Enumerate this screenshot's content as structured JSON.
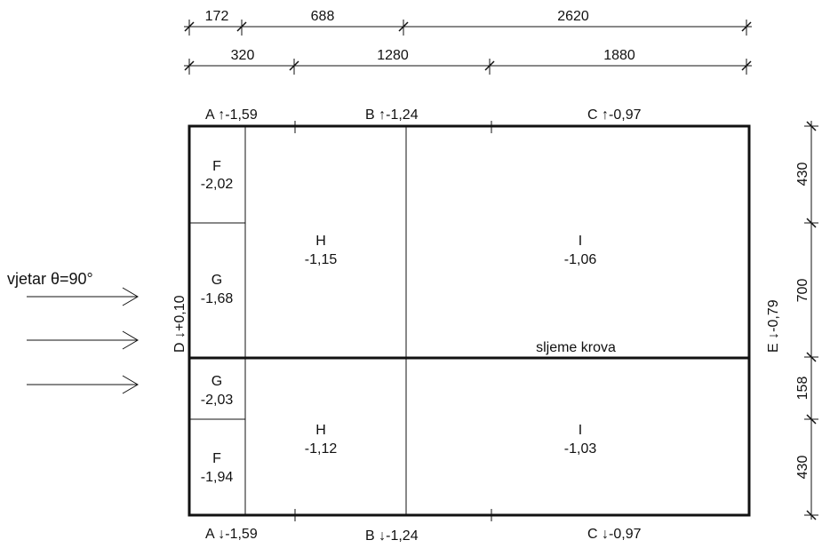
{
  "dims_top_row1": [
    "172",
    "688",
    "2620"
  ],
  "dims_top_row2": [
    "320",
    "1280",
    "1880"
  ],
  "dims_right": [
    "430",
    "700",
    "158",
    "430"
  ],
  "edge_labels": {
    "top": [
      {
        "letter": "A",
        "arrow": "↑",
        "value": "-1,59"
      },
      {
        "letter": "B",
        "arrow": "↑",
        "value": "-1,24"
      },
      {
        "letter": "C",
        "arrow": "↑",
        "value": "-0,97"
      }
    ],
    "bottom": [
      {
        "letter": "A",
        "arrow": "↓",
        "value": "-1,59"
      },
      {
        "letter": "B",
        "arrow": "↓",
        "value": "-1,24"
      },
      {
        "letter": "C",
        "arrow": "↓",
        "value": "-0,97"
      }
    ],
    "left": {
      "letter": "D",
      "arrow": "↓",
      "value": "+0,10"
    },
    "right": {
      "letter": "E",
      "arrow": "↓",
      "value": "-0,79"
    }
  },
  "zones": [
    {
      "id": "F",
      "value": "-2,02"
    },
    {
      "id": "G",
      "value": "-1,68"
    },
    {
      "id": "H",
      "value": "-1,15"
    },
    {
      "id": "I",
      "value": "-1,06"
    },
    {
      "id": "G",
      "value": "-2,03"
    },
    {
      "id": "F",
      "value": "-1,94"
    },
    {
      "id": "H",
      "value": "-1,12"
    },
    {
      "id": "I",
      "value": "-1,03"
    }
  ],
  "wind_label": "vjetar θ=90°",
  "ridge_label": "sljeme krova"
}
